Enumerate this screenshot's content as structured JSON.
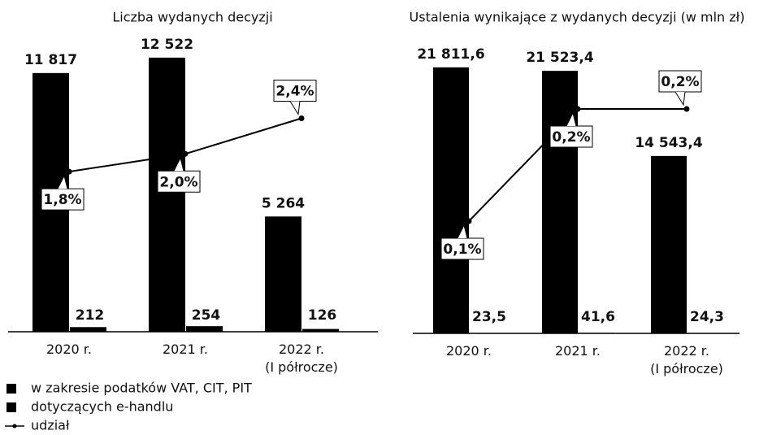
{
  "chart_data": [
    {
      "type": "bar",
      "title": "Liczba wydanych decyzji",
      "categories": [
        "2020 r.",
        "2021 r.",
        "2022 r.\n(I półrocze)"
      ],
      "ylim": [
        0,
        13000
      ],
      "y2lim": [
        0,
        3.2
      ],
      "series": [
        {
          "name": "w zakresie podatków VAT, CIT, PIT",
          "color": "#000000",
          "values": [
            11817,
            12522,
            5264
          ],
          "value_labels": [
            "11 817",
            "12 522",
            "5 264"
          ]
        },
        {
          "name": "dotyczących e-handlu",
          "color": "#000000",
          "values": [
            212,
            254,
            126
          ]
        },
        {
          "name": "udział",
          "type": "line",
          "axis": "y2",
          "color": "#000000",
          "values": [
            1.8,
            2.0,
            2.4
          ],
          "value_labels": [
            "1,8%",
            "2,0%",
            "2,4%"
          ]
        }
      ]
    },
    {
      "type": "bar",
      "title": "Ustalenia wynikające z wydanych decyzji (w mln zł)",
      "categories": [
        "2020 r.",
        "2021 r.",
        "2022 r.\n(I półrocze)"
      ],
      "ylim": [
        0,
        23000
      ],
      "y2lim": [
        0,
        0.25
      ],
      "series": [
        {
          "color": "#000000",
          "values": [
            21811.6,
            21523.4,
            14543.4
          ],
          "value_labels": [
            "21 811,6",
            "21 523,4",
            "14 543,4"
          ]
        },
        {
          "color": "#000000",
          "values": [
            23.5,
            41.6,
            24.3
          ],
          "value_labels": [
            "23,5",
            "41,6",
            "24,3"
          ]
        },
        {
          "type": "line",
          "axis": "y2",
          "color": "#000000",
          "values": [
            0.1,
            0.2,
            0.2
          ],
          "value_labels": [
            "0,1%",
            "0,2%",
            "0,2%"
          ]
        }
      ]
    }
  ]
}
